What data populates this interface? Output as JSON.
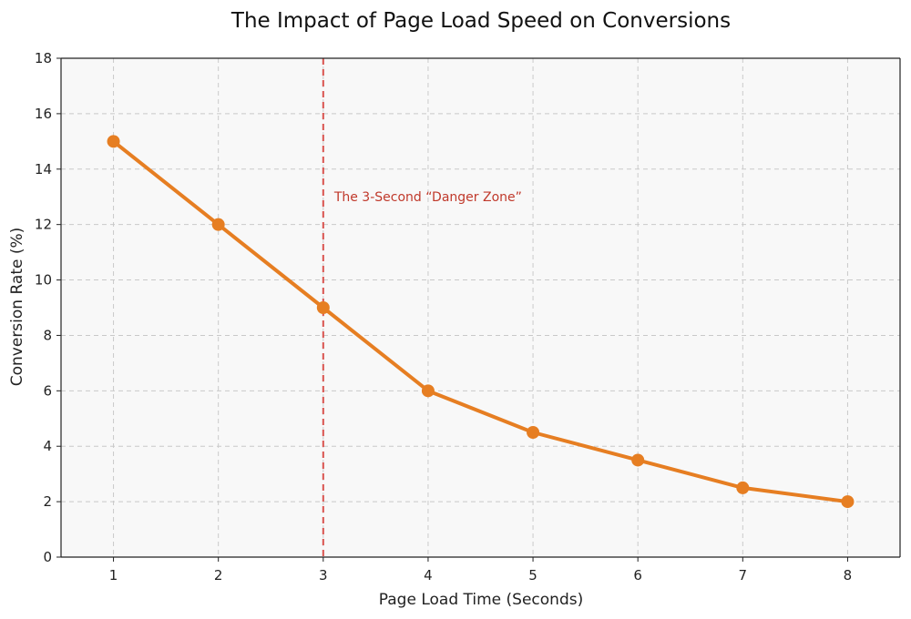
{
  "chart_data": {
    "type": "line",
    "title": "The Impact of Page Load Speed on Conversions",
    "xlabel": "Page Load Time (Seconds)",
    "ylabel": "Conversion Rate (%)",
    "x": [
      1,
      2,
      3,
      4,
      5,
      6,
      7,
      8
    ],
    "series": [
      {
        "values": [
          15,
          12,
          9,
          6,
          4.5,
          3.5,
          2.5,
          2
        ],
        "color": "#e67e22"
      }
    ],
    "xlim": [
      0.5,
      8.5
    ],
    "ylim": [
      0,
      18
    ],
    "xticks": [
      1,
      2,
      3,
      4,
      5,
      6,
      7,
      8
    ],
    "yticks": [
      0,
      2,
      4,
      6,
      8,
      10,
      12,
      14,
      16,
      18
    ],
    "grid": true,
    "legend": "none",
    "annotations": [
      {
        "type": "vertical-line",
        "x": 3,
        "style": "dashed",
        "color": "#d9534f",
        "label": "The 3-Second “Danger Zone”",
        "label_y": 13,
        "label_color": "#c0392b"
      }
    ],
    "plot_background": "#f8f8f8"
  }
}
